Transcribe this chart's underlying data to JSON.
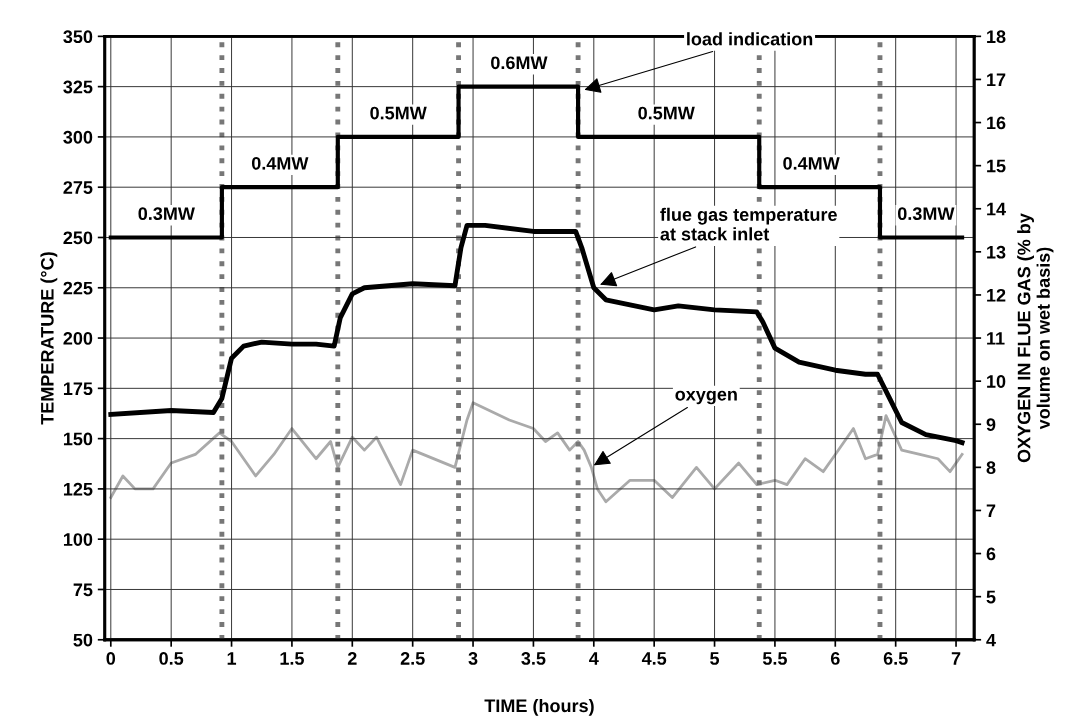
{
  "chart_data": {
    "type": "line",
    "xlabel": "TIME (hours)",
    "ylabel": "TEMPERATURE (°C)",
    "y2label": "OXYGEN IN FLUE GAS (% by\nvolume on wet basis)",
    "xlim": [
      -0.05,
      7.15
    ],
    "xticks": [
      0,
      0.5,
      1,
      1.5,
      2,
      2.5,
      3,
      3.5,
      4,
      4.5,
      5,
      5.5,
      6,
      6.5,
      7
    ],
    "ylim": [
      50,
      350
    ],
    "yticks": [
      50,
      75,
      100,
      125,
      150,
      175,
      200,
      225,
      250,
      275,
      300,
      325,
      350
    ],
    "y2lim": [
      4,
      18
    ],
    "y2ticks": [
      4,
      5,
      6,
      7,
      8,
      9,
      10,
      11,
      12,
      13,
      14,
      15,
      16,
      17,
      18
    ],
    "grid": true,
    "line_style": "solid",
    "marker": "none",
    "series": [
      {
        "type": "step",
        "color": "#000000",
        "x": [
          0,
          0.92,
          1.88,
          2.88,
          3.87,
          5.37,
          6.37,
          7.05
        ],
        "values": [
          250,
          275,
          300,
          325,
          300,
          275,
          250,
          250
        ]
      },
      {
        "type": "line",
        "color": "#000000",
        "x": [
          0,
          0.5,
          0.85,
          0.92,
          1.0,
          1.1,
          1.25,
          1.5,
          1.7,
          1.85,
          1.9,
          2.0,
          2.1,
          2.5,
          2.85,
          2.9,
          2.95,
          3.1,
          3.5,
          3.85,
          3.9,
          4.0,
          4.1,
          4.5,
          4.7,
          5.0,
          5.35,
          5.4,
          5.5,
          5.7,
          6.0,
          6.25,
          6.35,
          6.45,
          6.55,
          6.75,
          7.0,
          7.05
        ],
        "values": [
          162,
          164,
          163,
          170,
          190,
          196,
          198,
          197,
          197,
          196,
          210,
          222,
          225,
          227,
          226,
          245,
          256,
          256,
          253,
          253,
          245,
          225,
          219,
          214,
          216,
          214,
          213,
          208,
          195,
          188,
          184,
          182,
          182,
          170,
          158,
          152,
          149,
          148
        ]
      },
      {
        "type": "line",
        "axis": "y2",
        "color": "#aaaaaa",
        "x": [
          0,
          0.1,
          0.2,
          0.35,
          0.5,
          0.7,
          0.9,
          1.0,
          1.2,
          1.35,
          1.5,
          1.7,
          1.82,
          1.88,
          2.0,
          2.1,
          2.2,
          2.4,
          2.5,
          2.85,
          2.95,
          3.0,
          3.3,
          3.5,
          3.6,
          3.7,
          3.8,
          3.87,
          3.92,
          3.98,
          4.03,
          4.1,
          4.3,
          4.5,
          4.65,
          4.85,
          5.0,
          5.2,
          5.35,
          5.5,
          5.6,
          5.75,
          5.9,
          6.0,
          6.15,
          6.25,
          6.35,
          6.42,
          6.55,
          6.7,
          6.85,
          6.95,
          7.05
        ],
        "values": [
          7.3,
          7.8,
          7.5,
          7.5,
          8.1,
          8.3,
          8.8,
          8.6,
          7.8,
          8.3,
          8.9,
          8.2,
          8.6,
          8.0,
          8.7,
          8.4,
          8.7,
          7.6,
          8.4,
          8.0,
          9.1,
          9.5,
          9.1,
          8.9,
          8.6,
          8.8,
          8.4,
          8.6,
          8.4,
          8.0,
          7.5,
          7.2,
          7.7,
          7.7,
          7.3,
          8.0,
          7.5,
          8.1,
          7.6,
          7.7,
          7.6,
          8.2,
          7.9,
          8.3,
          8.9,
          8.2,
          8.3,
          9.2,
          8.4,
          8.3,
          8.2,
          7.9,
          8.3
        ]
      }
    ],
    "ref_lines": [
      {
        "axis": "x",
        "value": 0.92,
        "color": "#777777",
        "line_style": "dotted"
      },
      {
        "axis": "x",
        "value": 1.88,
        "color": "#777777",
        "line_style": "dotted"
      },
      {
        "axis": "x",
        "value": 2.88,
        "color": "#777777",
        "line_style": "dotted"
      },
      {
        "axis": "x",
        "value": 3.87,
        "color": "#777777",
        "line_style": "dotted"
      },
      {
        "axis": "x",
        "value": 5.37,
        "color": "#777777",
        "line_style": "dotted"
      },
      {
        "axis": "x",
        "value": 6.37,
        "color": "#777777",
        "line_style": "dotted"
      }
    ],
    "annotations": [
      {
        "text": "0.3MW",
        "x": 0.46,
        "y": 250
      },
      {
        "text": "0.4MW",
        "x": 1.4,
        "y": 275
      },
      {
        "text": "0.5MW",
        "x": 2.38,
        "y": 300
      },
      {
        "text": "0.6MW",
        "x": 3.38,
        "y": 325
      },
      {
        "text": "0.5MW",
        "x": 4.6,
        "y": 300
      },
      {
        "text": "0.4MW",
        "x": 5.8,
        "y": 275
      },
      {
        "text": "0.3MW",
        "x": 6.75,
        "y": 250
      },
      {
        "text": "load indication",
        "x": 3.9,
        "y": 323
      },
      {
        "text": "flue gas temperature\nat stack inlet",
        "x": 4.03,
        "y": 226
      },
      {
        "text": "oxygen",
        "x": 3.98,
        "y": 136
      }
    ]
  }
}
